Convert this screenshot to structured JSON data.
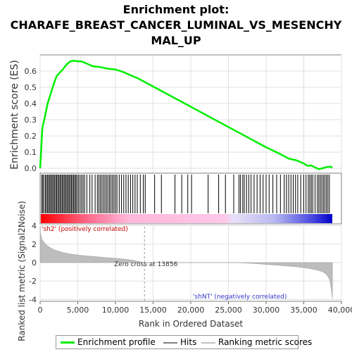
{
  "title_lines": [
    "Enrichment plot:",
    "CHARAFE_BREAST_CANCER_LUMINAL_VS_MESENCHY",
    "MAL_UP"
  ],
  "legend": {
    "profile": {
      "label": "Enrichment profile",
      "color": "#00ee00"
    },
    "hits": {
      "label": "Hits",
      "color": "#7f7f7f"
    },
    "ranking": {
      "label": "Ranking metric scores",
      "color": "#c0c0c0"
    }
  },
  "annotations": {
    "pos_label": "'sh2' (positively correlated)",
    "neg_label": "'shNT' (negatively correlated)",
    "zero_cross": "Zero cross at 13856"
  },
  "chart_data": [
    {
      "type": "line",
      "name": "enrichment-profile",
      "ylabel": "Enrichment score (ES)",
      "ylim": [
        -0.03,
        0.7
      ],
      "yticks": [
        "0.0",
        "0.1",
        "0.2",
        "0.3",
        "0.4",
        "0.5",
        "0.6"
      ],
      "xlim": [
        0,
        40000
      ],
      "grid": true,
      "color": "#00ee00",
      "x": [
        0,
        300,
        600,
        1000,
        1400,
        1800,
        2200,
        2600,
        3000,
        3500,
        4000,
        4500,
        5000,
        5500,
        6000,
        7000,
        8000,
        9000,
        10000,
        11000,
        12000,
        13000,
        14000,
        16000,
        18000,
        20000,
        22000,
        24000,
        26000,
        28000,
        30000,
        32000,
        33000,
        34000,
        35000,
        35500,
        36000,
        36500,
        37000,
        37500,
        38000,
        38500,
        38800
      ],
      "y": [
        0.0,
        0.25,
        0.31,
        0.4,
        0.46,
        0.52,
        0.57,
        0.59,
        0.61,
        0.64,
        0.66,
        0.665,
        0.66,
        0.66,
        0.65,
        0.63,
        0.625,
        0.615,
        0.61,
        0.595,
        0.575,
        0.555,
        0.53,
        0.48,
        0.43,
        0.38,
        0.33,
        0.28,
        0.23,
        0.18,
        0.13,
        0.085,
        0.06,
        0.05,
        0.03,
        0.015,
        0.018,
        0.005,
        -0.005,
        0.0,
        0.008,
        0.01,
        0.005
      ]
    },
    {
      "type": "bar",
      "name": "hits",
      "note": "gene-set hit positions along rank",
      "hit_ranks": [
        200,
        350,
        500,
        700,
        850,
        1000,
        1150,
        1300,
        1450,
        1600,
        1750,
        1900,
        2050,
        2200,
        2350,
        2500,
        2650,
        2800,
        2950,
        3100,
        3250,
        3400,
        3550,
        3700,
        3850,
        4000,
        4150,
        4300,
        4450,
        4600,
        4750,
        4900,
        5100,
        5300,
        5500,
        5700,
        5900,
        6200,
        6600,
        6900,
        7300,
        7600,
        7800,
        8000,
        8200,
        8400,
        8600,
        8800,
        9000,
        9200,
        9400,
        9600,
        9800,
        10000,
        10200,
        10500,
        10800,
        11100,
        11400,
        11700,
        12000,
        12300,
        12600,
        12900,
        13300,
        13700,
        13950,
        15200,
        16100,
        17900,
        18800,
        19600,
        20100,
        22300,
        23700,
        24600,
        25700,
        26400,
        26600,
        26900,
        27100,
        27400,
        27700,
        28000,
        28400,
        28800,
        29200,
        29600,
        30000,
        30400,
        30900,
        31400,
        31900,
        32400,
        32700,
        33000,
        33300,
        33600,
        33900,
        34200,
        34600,
        35000,
        35300,
        35600,
        35800,
        36000,
        36200,
        36500,
        36800,
        37000,
        37200,
        37400,
        37600,
        37800,
        38000,
        38200,
        38400
      ]
    },
    {
      "type": "area",
      "name": "ranking-metric",
      "ylabel": "Ranked list metric (Signal2Noise)",
      "xlabel": "Rank in Ordered Dataset",
      "ylim": [
        -4.2,
        4.2
      ],
      "yticks": [
        "4",
        "2",
        "0",
        "-2",
        "-4"
      ],
      "xticks": [
        "0",
        "5,000",
        "10,000",
        "15,000",
        "20,000",
        "25,000",
        "30,000",
        "35,000",
        "40,000"
      ],
      "zero_cross_rank": 13856,
      "color": "#bdbdbd",
      "x": [
        0,
        50,
        200,
        500,
        1000,
        1500,
        2000,
        3000,
        4000,
        5000,
        6000,
        7000,
        8000,
        9000,
        10000,
        12000,
        13856,
        16000,
        20000,
        25000,
        26000,
        28000,
        30000,
        32000,
        34000,
        35000,
        36000,
        36800,
        37500,
        37800,
        38000,
        38200,
        38400,
        38500,
        38600,
        38700,
        38800
      ],
      "y": [
        4.0,
        3.2,
        2.6,
        2.2,
        1.8,
        1.55,
        1.35,
        1.1,
        0.93,
        0.82,
        0.74,
        0.67,
        0.6,
        0.53,
        0.47,
        0.3,
        0.0,
        0.0,
        0.0,
        0.0,
        0.0,
        -0.08,
        -0.2,
        -0.32,
        -0.45,
        -0.55,
        -0.68,
        -0.82,
        -1.0,
        -1.15,
        -1.3,
        -1.5,
        -1.8,
        -2.1,
        -2.6,
        -3.2,
        -3.9
      ]
    }
  ]
}
